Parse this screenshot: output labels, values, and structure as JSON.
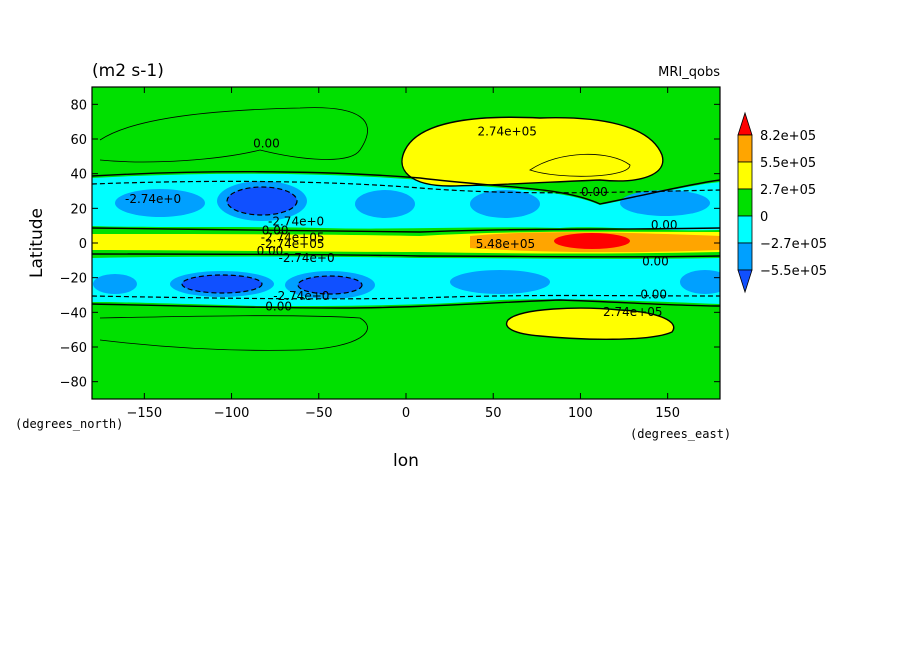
{
  "chart_data": {
    "type": "heatmap",
    "title": "(m2 s-1)",
    "model_label": "MRI_qobs",
    "xlabel": "lon",
    "ylabel": "Latitude",
    "x_units": "(degrees_east)",
    "y_units": "(degrees_north)",
    "xlim": [
      -180,
      180
    ],
    "ylim": [
      -90,
      90
    ],
    "x_ticks": [
      -150,
      -100,
      -50,
      0,
      50,
      100,
      150
    ],
    "y_ticks": [
      80,
      60,
      40,
      20,
      0,
      -20,
      -40,
      -60,
      -80
    ],
    "colorbar": {
      "labels": [
        "8.2e+05",
        "5.5e+05",
        "2.7e+05",
        "0",
        "−2.7e+05",
        "−5.5e+05"
      ],
      "colors": [
        "#ff0000",
        "#ffa500",
        "#ffff00",
        "#00e000",
        "#00ffff",
        "#00a0ff",
        "#1050ff"
      ]
    },
    "contour_labels": [
      {
        "text": "0.00",
        "lon": -80,
        "lat": 55
      },
      {
        "text": "2.74e+05",
        "lon": 58,
        "lat": 62
      },
      {
        "text": "-2.74e+0",
        "lon": -145,
        "lat": 23
      },
      {
        "text": "0.00",
        "lon": 108,
        "lat": 27
      },
      {
        "text": "0.00",
        "lon": 148,
        "lat": 8
      },
      {
        "text": "-2.74e+0",
        "lon": -63,
        "lat": 10
      },
      {
        "text": "0.00",
        "lon": -75,
        "lat": 5
      },
      {
        "text": "-2.74e+05",
        "lon": -65,
        "lat": 1
      },
      {
        "text": "-2.74e+05",
        "lon": -65,
        "lat": -3
      },
      {
        "text": "0.00",
        "lon": -78,
        "lat": -7
      },
      {
        "text": "5.48e+05",
        "lon": 57,
        "lat": -3
      },
      {
        "text": "-2.74e+0",
        "lon": -57,
        "lat": -11
      },
      {
        "text": "0.00",
        "lon": 143,
        "lat": -13
      },
      {
        "text": "-2.74e+0",
        "lon": -60,
        "lat": -33
      },
      {
        "text": "0.00",
        "lon": -73,
        "lat": -39
      },
      {
        "text": "0.00",
        "lon": 142,
        "lat": -32
      },
      {
        "text": "2.74e+05",
        "lon": 130,
        "lat": -42
      }
    ]
  }
}
